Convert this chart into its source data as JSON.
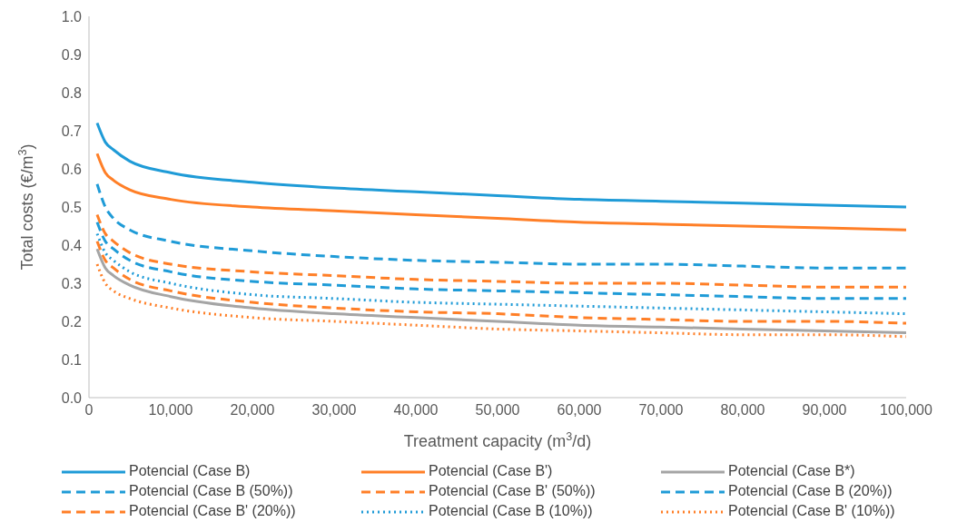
{
  "chart_data": {
    "type": "line",
    "xlabel": "Treatment capacity (m$^{3}$/d)",
    "ylabel": "Total costs (€/m$^{3}$)",
    "x": [
      1000,
      2000,
      3000,
      5000,
      10000,
      20000,
      30000,
      40000,
      50000,
      60000,
      70000,
      80000,
      90000,
      100000
    ],
    "xlim": [
      0,
      100000
    ],
    "xticks": [
      0,
      {
        "value": 10000,
        "label": "10,000"
      },
      {
        "value": 20000,
        "label": "20,000"
      },
      {
        "value": 30000,
        "label": "30,000"
      },
      {
        "value": 40000,
        "label": "40,000"
      },
      {
        "value": 50000,
        "label": "50,000"
      },
      {
        "value": 60000,
        "label": "60,000"
      },
      {
        "value": 70000,
        "label": "70,000"
      },
      {
        "value": 80000,
        "label": "80,000"
      },
      {
        "value": 90000,
        "label": "90,000"
      },
      {
        "value": 100000,
        "label": "100,000"
      }
    ],
    "ylim": [
      0,
      1
    ],
    "yticks": [
      {
        "value": 0,
        "label": "0.0"
      },
      0.1,
      0.2,
      0.3,
      0.4,
      0.5,
      0.6,
      0.7,
      0.8,
      0.9,
      {
        "value": 1,
        "label": "1.0"
      }
    ],
    "grid": false,
    "legend": "bottom",
    "marker": "none",
    "series": [
      {
        "name": "Potencial (Case B)",
        "color": "#1f9bd7",
        "line_style": "solid",
        "values": [
          0.72,
          0.67,
          0.65,
          0.62,
          0.59,
          0.565,
          0.55,
          0.54,
          0.53,
          0.52,
          0.515,
          0.51,
          0.505,
          0.5
        ]
      },
      {
        "name": "Potencial (Case B')",
        "color": "#ff7f27",
        "line_style": "solid",
        "values": [
          0.64,
          0.59,
          0.57,
          0.545,
          0.52,
          0.5,
          0.49,
          0.48,
          0.47,
          0.46,
          0.455,
          0.45,
          0.445,
          0.44
        ]
      },
      {
        "name": "Potencial (Case B*)",
        "color": "#a5a5a5",
        "line_style": "solid",
        "values": [
          0.39,
          0.34,
          0.32,
          0.295,
          0.265,
          0.235,
          0.22,
          0.21,
          0.2,
          0.19,
          0.185,
          0.18,
          0.175,
          0.17
        ]
      },
      {
        "name": "Potencial (Case B (50%))",
        "color": "#1f9bd7",
        "line_style": "dashed",
        "values": [
          0.56,
          0.5,
          0.47,
          0.44,
          0.41,
          0.385,
          0.37,
          0.36,
          0.355,
          0.35,
          0.35,
          0.345,
          0.34,
          0.34
        ]
      },
      {
        "name": "Potencial (Case B' (50%))",
        "color": "#ff7f27",
        "line_style": "dashed",
        "values": [
          0.48,
          0.43,
          0.41,
          0.38,
          0.35,
          0.33,
          0.32,
          0.31,
          0.305,
          0.3,
          0.3,
          0.295,
          0.29,
          0.29
        ]
      },
      {
        "name": "Potencial (Case B (20%))",
        "color": "#1f9bd7",
        "line_style": "dashed",
        "values": [
          0.46,
          0.41,
          0.39,
          0.36,
          0.33,
          0.305,
          0.295,
          0.285,
          0.28,
          0.275,
          0.27,
          0.265,
          0.26,
          0.26
        ]
      },
      {
        "name": "Potencial (Case B' (20%))",
        "color": "#ff7f27",
        "line_style": "dashed",
        "values": [
          0.41,
          0.36,
          0.34,
          0.31,
          0.28,
          0.25,
          0.235,
          0.225,
          0.22,
          0.21,
          0.205,
          0.2,
          0.2,
          0.195
        ]
      },
      {
        "name": "Potencial (Case B (10%))",
        "color": "#1f9bd7",
        "line_style": "dotted",
        "values": [
          0.43,
          0.38,
          0.36,
          0.33,
          0.3,
          0.27,
          0.26,
          0.25,
          0.245,
          0.24,
          0.235,
          0.23,
          0.225,
          0.22
        ]
      },
      {
        "name": "Potencial (Case B' (10%))",
        "color": "#ff7f27",
        "line_style": "dotted",
        "values": [
          0.35,
          0.3,
          0.28,
          0.26,
          0.235,
          0.21,
          0.2,
          0.19,
          0.18,
          0.175,
          0.17,
          0.165,
          0.165,
          0.16
        ]
      }
    ]
  }
}
